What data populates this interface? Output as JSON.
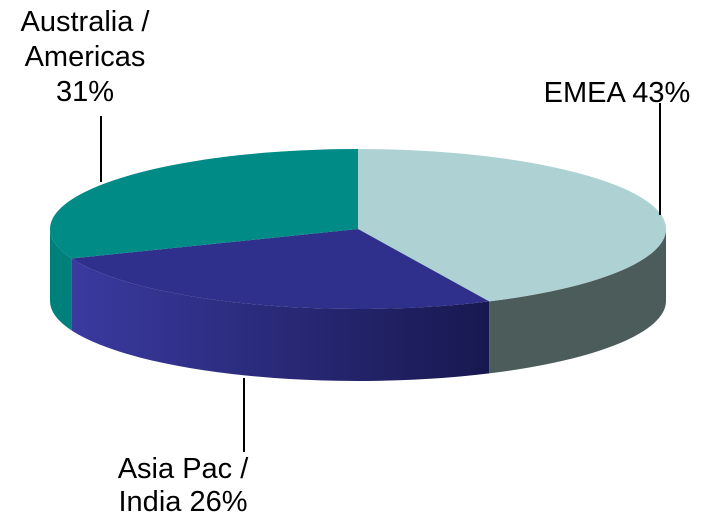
{
  "chart_data": {
    "type": "pie",
    "variant": "3d",
    "start_angle_deg": 90,
    "direction": "clockwise",
    "slices": [
      {
        "category": "EMEA",
        "value": 43,
        "percent_label": "43%",
        "label_lines": [
          "EMEA 43%"
        ],
        "color": "#aed1d3",
        "side_color": "#4b5c5b"
      },
      {
        "category": "Asia Pac / India",
        "value": 26,
        "percent_label": "26%",
        "label_lines": [
          "Asia Pac /",
          "India 26%"
        ],
        "color": "#2f2f8c",
        "side_color": "#2a2a7a"
      },
      {
        "category": "Australia / Americas",
        "value": 31,
        "percent_label": "31%",
        "label_lines": [
          "Australia /",
          "Americas",
          "31%"
        ],
        "color": "#008b87",
        "side_color": "#00807b"
      }
    ],
    "legend": "none"
  }
}
